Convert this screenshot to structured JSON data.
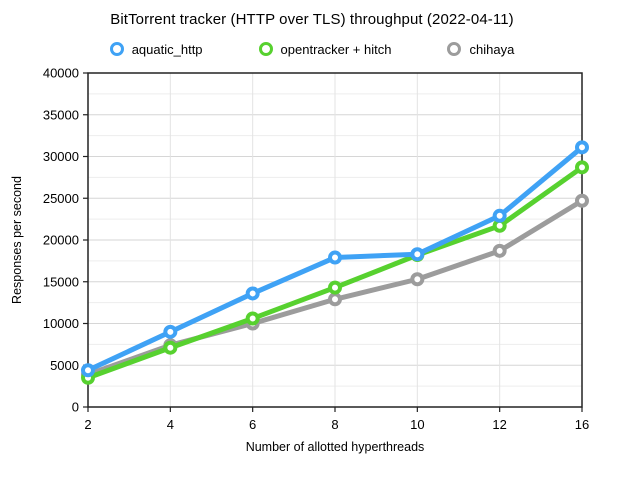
{
  "chart_data": {
    "type": "line",
    "title": "BitTorrent tracker (HTTP over TLS) throughput (2022-04-11)",
    "xlabel": "Number of allotted hyperthreads",
    "ylabel": "Responses per second",
    "categories": [
      2,
      4,
      6,
      8,
      10,
      12,
      16
    ],
    "ylim": [
      0,
      40000
    ],
    "y_major_step": 5000,
    "y_minor_step": 2500,
    "grid": true,
    "legend_position": "top",
    "series": [
      {
        "name": "aquatic_http",
        "color": "#3FA2F5",
        "values": [
          4400,
          9000,
          13600,
          17900,
          18300,
          22900,
          31100
        ]
      },
      {
        "name": "opentracker + hitch",
        "color": "#57D12F",
        "values": [
          3500,
          7100,
          10600,
          14300,
          18200,
          21700,
          28700
        ]
      },
      {
        "name": "chihaya",
        "color": "#9C9C9C",
        "values": [
          3900,
          7400,
          10000,
          12900,
          15300,
          18700,
          24700
        ]
      }
    ],
    "draw_order": [
      "chihaya",
      "opentracker + hitch",
      "aquatic_http"
    ],
    "colors": {
      "frame": "#222222",
      "major_grid": "#d6d6d6",
      "minor_grid": "#ededed",
      "vertical_grid": "#e3e3e3",
      "marker_fill": "#ffffff"
    }
  }
}
